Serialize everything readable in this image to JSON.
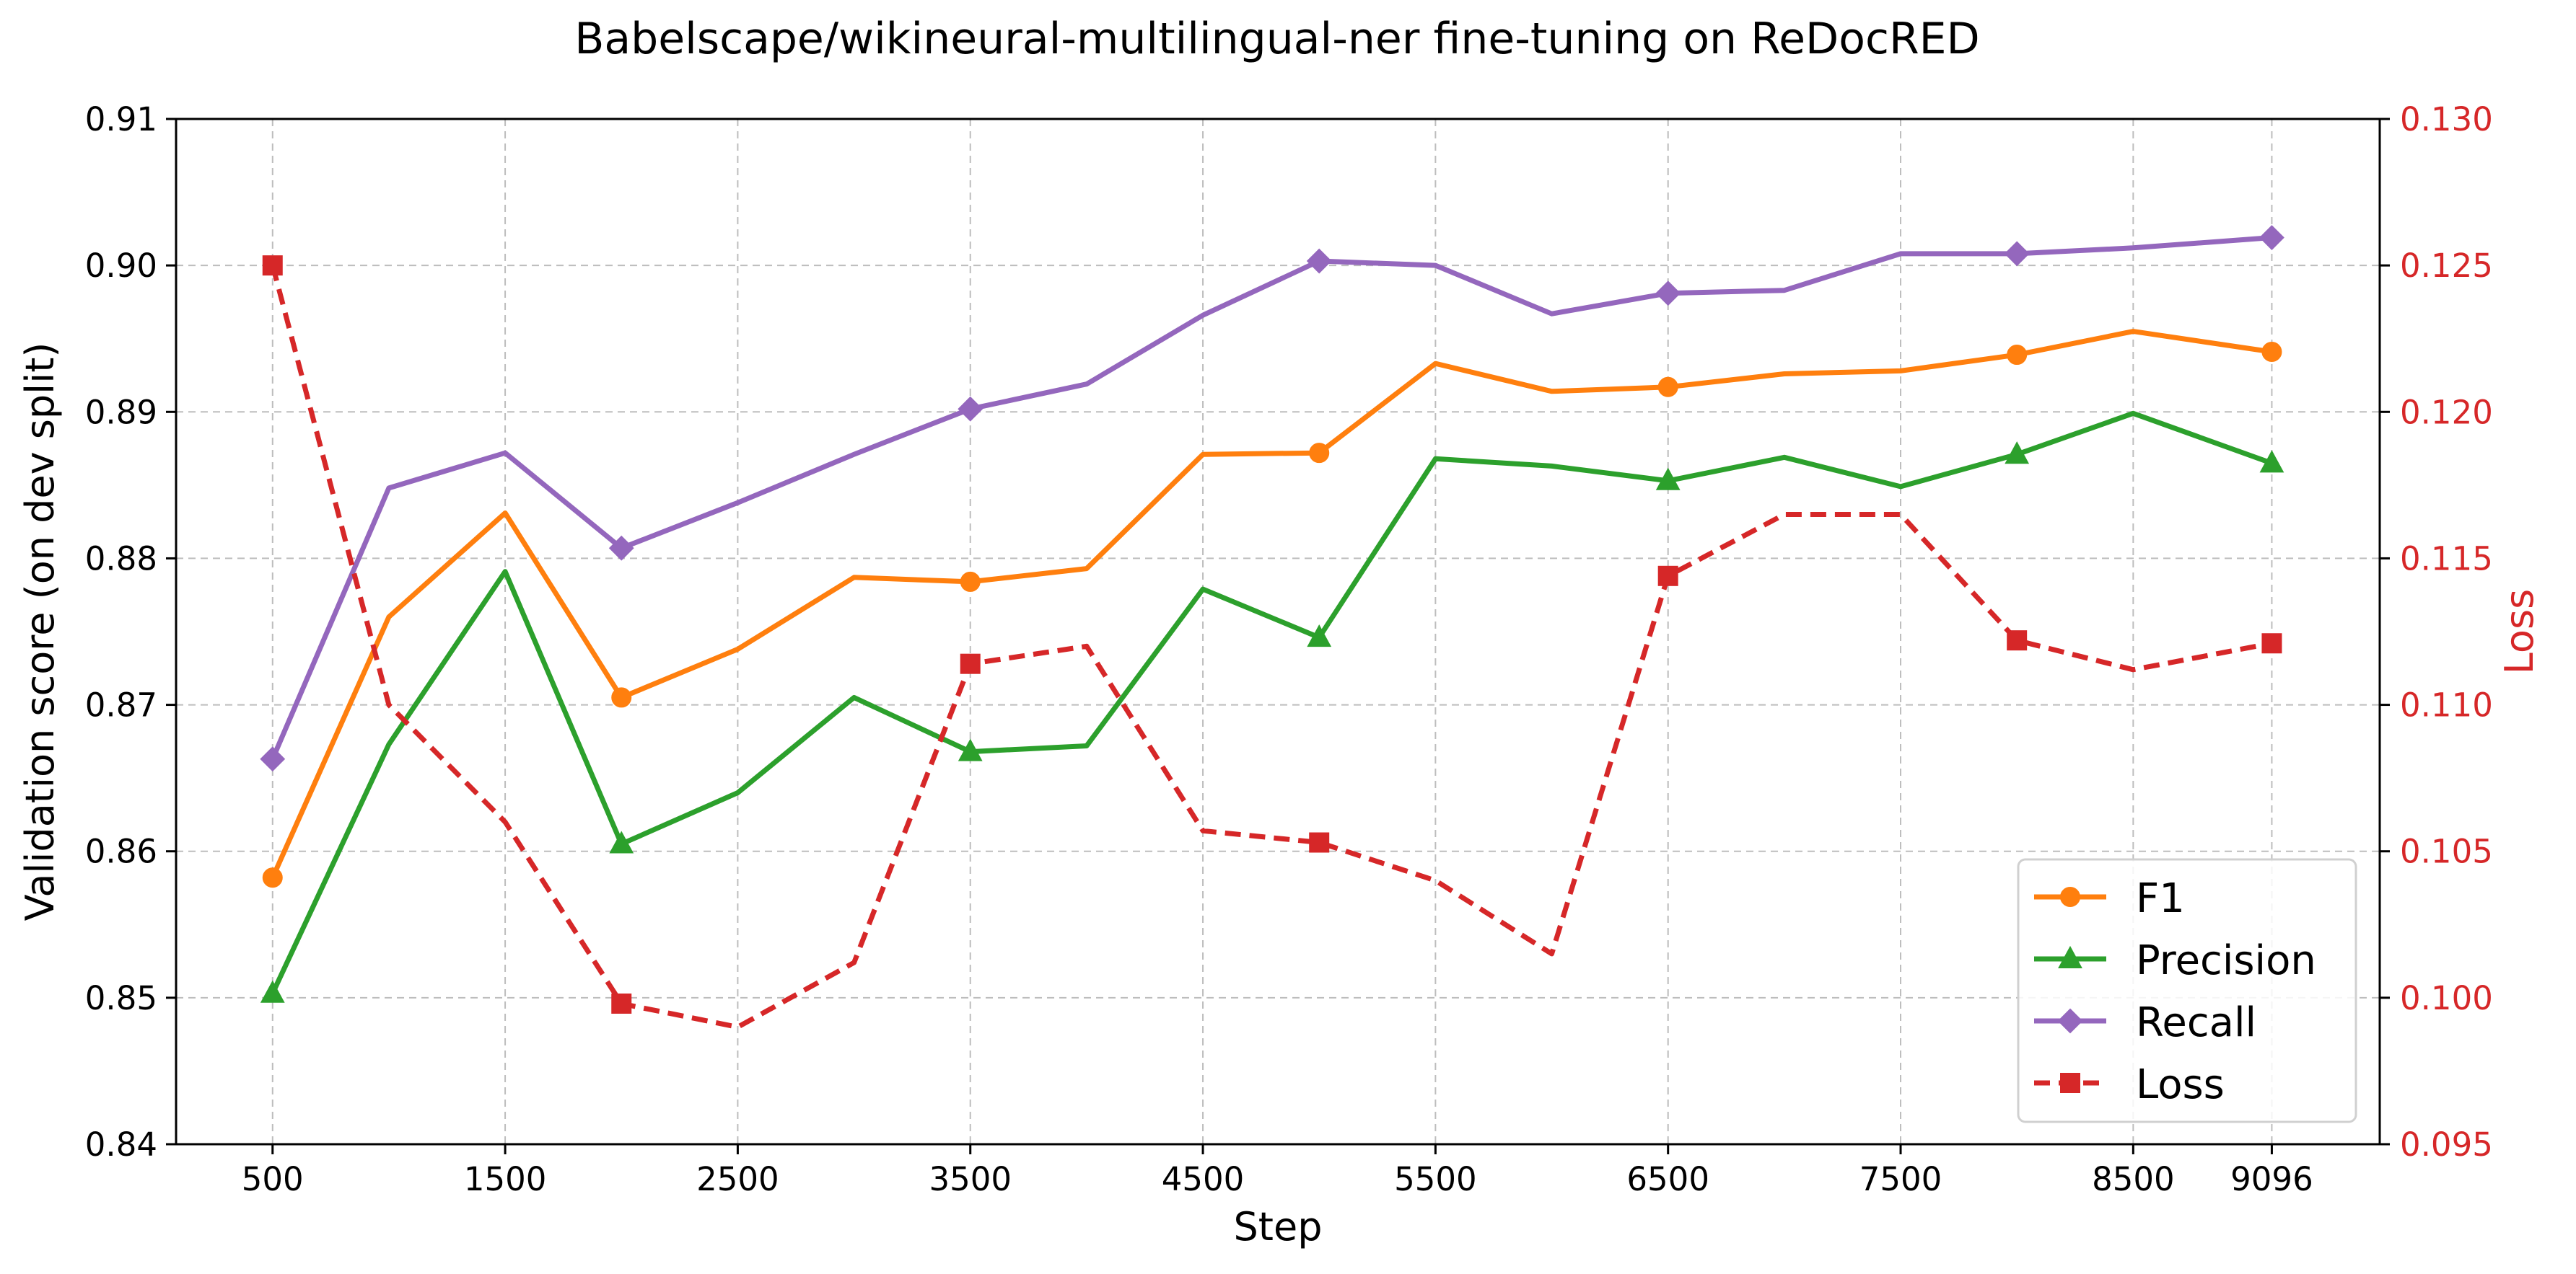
{
  "chart_data": {
    "type": "line",
    "title": "Babelscape/wikineural-multilingual-ner fine-tuning on ReDocRED",
    "xlabel": "Step",
    "ylabel": "Validation score (on dev split)",
    "y2label": "Loss",
    "x": [
      500,
      1000,
      1500,
      2000,
      2500,
      3000,
      3500,
      4000,
      4500,
      5000,
      5500,
      6000,
      6500,
      7000,
      7500,
      8000,
      8500,
      9096
    ],
    "xticks": [
      500,
      1500,
      2500,
      3500,
      4500,
      5500,
      6500,
      7500,
      8500,
      9096
    ],
    "xtick_labels": [
      "500",
      "1500",
      "2500",
      "3500",
      "4500",
      "5500",
      "6500",
      "7500",
      "8500",
      "9096"
    ],
    "xlim": [
      85,
      9560
    ],
    "ylim": [
      0.84,
      0.91
    ],
    "yticks": [
      0.84,
      0.85,
      0.86,
      0.87,
      0.88,
      0.89,
      0.9,
      0.91
    ],
    "ytick_labels": [
      "0.84",
      "0.85",
      "0.86",
      "0.87",
      "0.88",
      "0.89",
      "0.90",
      "0.91"
    ],
    "y2lim": [
      0.095,
      0.13
    ],
    "y2ticks": [
      0.095,
      0.1,
      0.105,
      0.11,
      0.115,
      0.12,
      0.125,
      0.13
    ],
    "y2tick_labels": [
      "0.095",
      "0.100",
      "0.105",
      "0.110",
      "0.115",
      "0.120",
      "0.125",
      "0.130"
    ],
    "grid": true,
    "legend_position": "bottom-right",
    "series": [
      {
        "name": "F1",
        "axis": "left",
        "color": "#ff7f0e",
        "marker": "circle",
        "dashed": false,
        "values": [
          0.8582,
          0.876,
          0.8831,
          0.8705,
          0.8738,
          0.8787,
          0.8784,
          0.8793,
          0.8871,
          0.8872,
          0.8933,
          0.8914,
          0.8917,
          0.8926,
          0.8928,
          0.8939,
          0.8955,
          0.8941
        ],
        "marker_indices": [
          0,
          3,
          6,
          9,
          12,
          15,
          17
        ]
      },
      {
        "name": "Precision",
        "axis": "left",
        "color": "#2ca02c",
        "marker": "triangle",
        "dashed": false,
        "values": [
          0.8503,
          0.8673,
          0.8791,
          0.8605,
          0.864,
          0.8705,
          0.8668,
          0.8672,
          0.8779,
          0.8746,
          0.8868,
          0.8863,
          0.8853,
          0.8869,
          0.8849,
          0.8871,
          0.8899,
          0.8865
        ],
        "marker_indices": [
          0,
          3,
          6,
          9,
          12,
          15,
          17
        ]
      },
      {
        "name": "Recall",
        "axis": "left",
        "color": "#9467bd",
        "marker": "diamond",
        "dashed": false,
        "values": [
          0.8663,
          0.8848,
          0.8872,
          0.8807,
          0.8838,
          0.8871,
          0.8902,
          0.8919,
          0.8966,
          0.9003,
          0.9,
          0.8967,
          0.8981,
          0.8983,
          0.9008,
          0.9008,
          0.9012,
          0.9019
        ],
        "marker_indices": [
          0,
          3,
          6,
          9,
          12,
          15,
          17
        ]
      },
      {
        "name": "Loss",
        "axis": "right",
        "color": "#d62728",
        "marker": "square",
        "dashed": true,
        "values": [
          0.125,
          0.11,
          0.106,
          0.0998,
          0.099,
          0.1012,
          0.1114,
          0.112,
          0.1057,
          0.1053,
          0.104,
          0.1015,
          0.1144,
          0.1165,
          0.1165,
          0.1122,
          0.1112,
          0.1121
        ],
        "marker_indices": [
          0,
          3,
          6,
          9,
          12,
          15,
          17
        ]
      }
    ]
  }
}
